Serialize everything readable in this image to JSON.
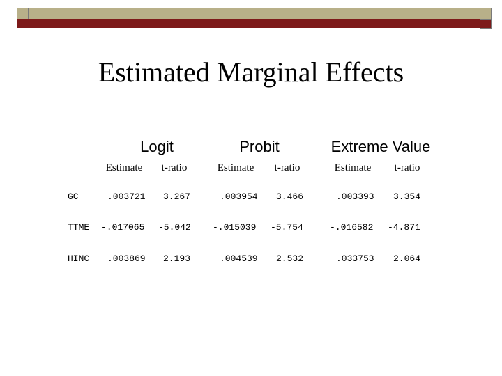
{
  "title": "Estimated Marginal Effects",
  "models": [
    "Logit",
    "Probit",
    "Extreme Value"
  ],
  "subheaders": [
    "Estimate",
    "t-ratio"
  ],
  "rows": [
    {
      "label": "GC",
      "values": [
        ".003721",
        "3.267",
        ".003954",
        "3.466",
        ".003393",
        "3.354"
      ]
    },
    {
      "label": "TTME",
      "values": [
        "-.017065",
        "-5.042",
        "-.015039",
        "-5.754",
        "-.016582",
        "-4.871"
      ]
    },
    {
      "label": "HINC",
      "values": [
        ".003869",
        "2.193",
        ".004539",
        "2.532",
        ".033753",
        "2.064"
      ]
    }
  ],
  "colors": {
    "header_olive": "#b8b089",
    "header_red": "#7d1a1a"
  }
}
